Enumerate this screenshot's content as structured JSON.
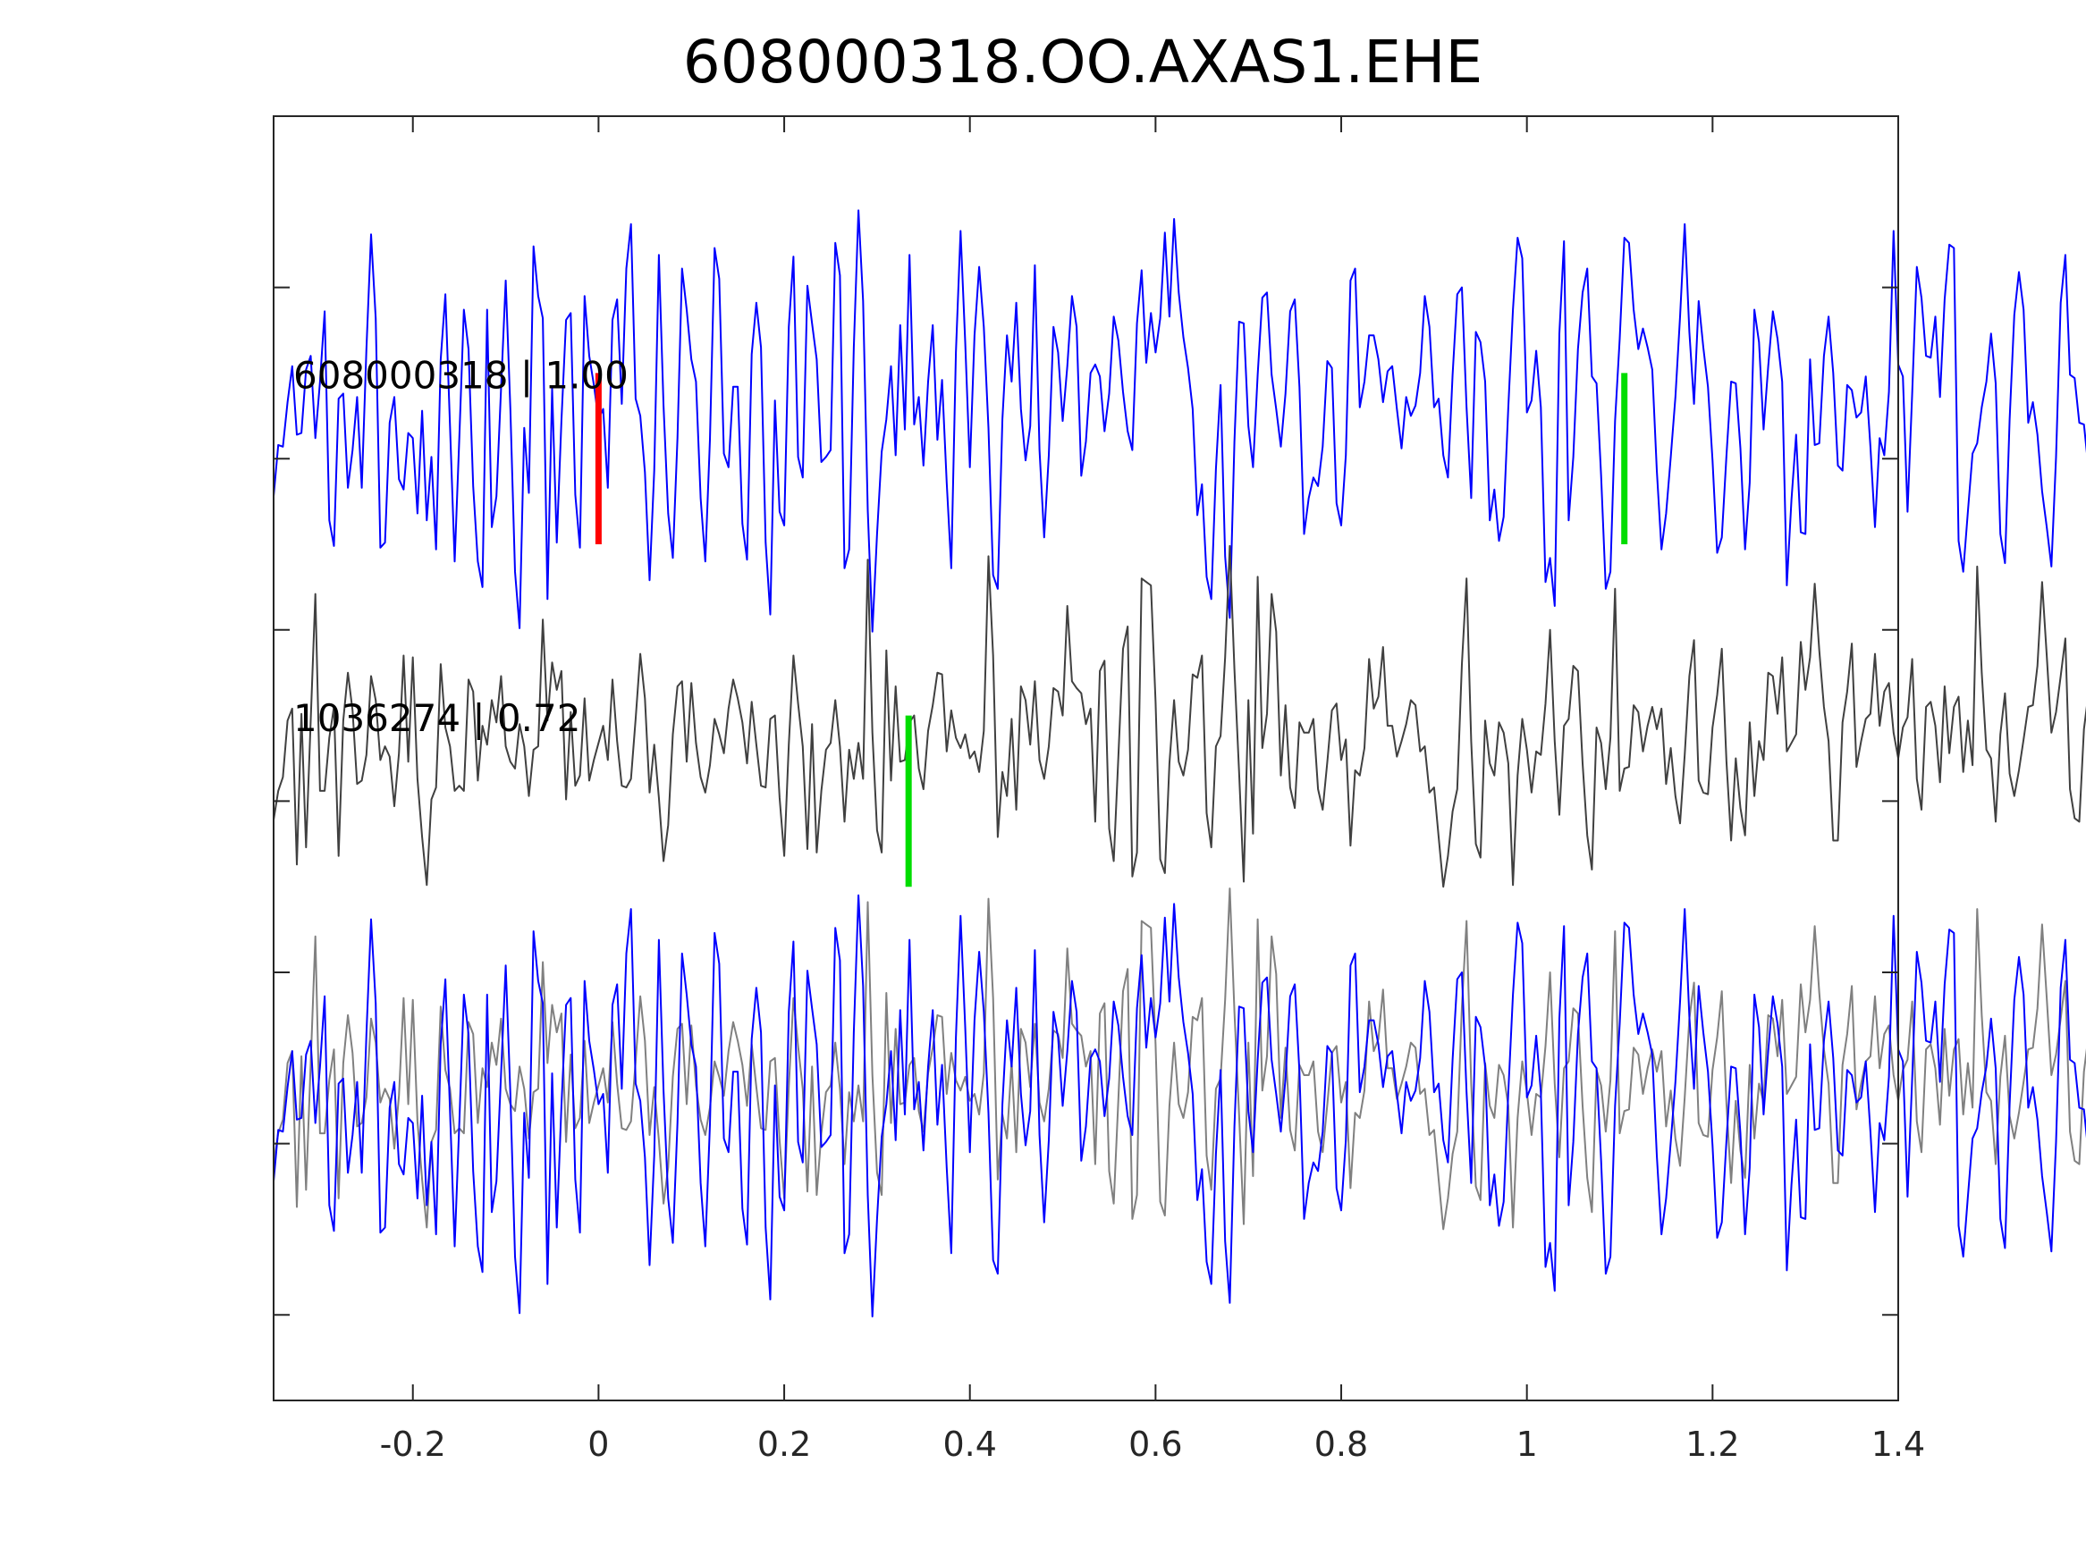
{
  "chart_data": {
    "type": "line",
    "title": "608000318.OO.AXAS1.EHE",
    "xlabel": "",
    "ylabel": "",
    "xlim": [
      -0.35,
      1.4
    ],
    "ylim": [
      -1.5,
      6.0
    ],
    "x_ticks": [
      -0.2,
      0,
      0.2,
      0.4,
      0.6,
      0.8,
      1,
      1.2,
      1.4
    ],
    "x_tick_labels": [
      "-0.2",
      "0",
      "0.2",
      "0.4",
      "0.6",
      "0.8",
      "1",
      "1.2",
      "1.4"
    ],
    "y_ticks": [
      -1,
      0,
      1,
      2,
      3,
      4,
      5
    ],
    "y_tick_labels_shown": false,
    "grid": false,
    "legend": "none",
    "sample_interval_s": 0.005,
    "start_x": -0.35,
    "series": [
      {
        "label": "608000318 | 1.00",
        "color": "#0000ff",
        "offset": 4,
        "values": [
          -0.22,
          0.08,
          0.07,
          0.33,
          0.54,
          0.14,
          0.15,
          0.52,
          0.6,
          0.12,
          0.45,
          0.86,
          -0.36,
          -0.51,
          0.35,
          0.38,
          -0.17,
          0.05,
          0.36,
          -0.17,
          0.64,
          1.31,
          0.82,
          -0.52,
          -0.49,
          0.21,
          0.36,
          -0.12,
          -0.18,
          0.15,
          0.12,
          -0.32,
          0.28,
          -0.36,
          0.01,
          -0.53,
          0.58,
          0.96,
          0.19,
          -0.6,
          0.12,
          0.87,
          0.64,
          -0.16,
          -0.6,
          -0.75,
          0.87,
          -0.4,
          -0.22,
          0.41,
          1.04,
          0.29,
          -0.66,
          -0.99,
          0.18,
          -0.2,
          1.24,
          0.95,
          0.82,
          -0.82,
          0.41,
          -0.49,
          0.22,
          0.81,
          0.85,
          -0.21,
          -0.52,
          0.95,
          0.6,
          0.43,
          0.23,
          0.29,
          -0.17,
          0.81,
          0.93,
          0.32,
          1.11,
          1.37,
          0.35,
          0.25,
          -0.08,
          -0.71,
          -0.07,
          1.19,
          0.31,
          -0.32,
          -0.58,
          0.12,
          1.11,
          0.87,
          0.58,
          0.45,
          -0.23,
          -0.6,
          0.11,
          1.23,
          1.05,
          0.03,
          -0.05,
          0.42,
          0.42,
          -0.38,
          -0.59,
          0.61,
          0.91,
          0.65,
          -0.49,
          -0.91,
          0.34,
          -0.31,
          -0.39,
          0.77,
          1.18,
          0.01,
          -0.11,
          1.01,
          0.79,
          0.58,
          -0.02,
          0.01,
          0.05,
          1.26,
          1.07,
          -0.64,
          -0.53,
          0.65,
          1.45,
          0.92,
          -0.3,
          -1.01,
          -0.44,
          0.04,
          0.23,
          0.54,
          0.02,
          0.78,
          0.17,
          1.19,
          0.2,
          0.36,
          -0.04,
          0.45,
          0.78,
          0.11,
          0.46,
          -0.14,
          -0.64,
          0.62,
          1.33,
          0.68,
          -0.05,
          0.72,
          1.12,
          0.77,
          0.18,
          -0.68,
          -0.76,
          0.23,
          0.72,
          0.45,
          0.91,
          0.29,
          -0.01,
          0.19,
          1.13,
          0.05,
          -0.46,
          0.02,
          0.77,
          0.62,
          0.22,
          0.54,
          0.95,
          0.77,
          -0.1,
          0.1,
          0.5,
          0.55,
          0.48,
          0.16,
          0.38,
          0.83,
          0.69,
          0.39,
          0.16,
          0.05,
          0.79,
          1.1,
          0.56,
          0.85,
          0.62,
          0.82,
          1.32,
          0.83,
          1.4,
          0.97,
          0.71,
          0.53,
          0.29,
          -0.33,
          -0.15,
          -0.69,
          -0.82,
          -0.06,
          0.43,
          -0.57,
          -0.93,
          0.1,
          0.8,
          0.79,
          0.19,
          -0.05,
          0.49,
          0.94,
          0.97,
          0.49,
          0.29,
          0.07,
          0.38,
          0.86,
          0.93,
          0.42,
          -0.44,
          -0.23,
          -0.11,
          -0.16,
          0.07,
          0.57,
          0.53,
          -0.26,
          -0.39,
          0.02,
          1.04,
          1.11,
          0.3,
          0.45,
          0.72,
          0.72,
          0.58,
          0.33,
          0.51,
          0.54,
          0.29,
          0.06,
          0.36,
          0.25,
          0.31,
          0.5,
          0.95,
          0.77,
          0.3,
          0.35,
          0.02,
          -0.11,
          0.49,
          0.96,
          1.0,
          0.3,
          -0.23,
          0.74,
          0.68,
          0.45,
          -0.36,
          -0.18,
          -0.48,
          -0.34,
          0.3,
          0.87,
          1.29,
          1.17,
          0.27,
          0.34,
          0.63,
          0.3,
          -0.72,
          -0.58,
          -0.86,
          0.73,
          1.27,
          -0.36,
          0.01,
          0.64,
          0.97,
          1.11,
          0.48,
          0.44,
          -0.1,
          -0.76,
          -0.66,
          0.22,
          0.7,
          1.29,
          1.26,
          0.87,
          0.64,
          0.76,
          0.65,
          0.52,
          -0.07,
          -0.53,
          -0.32,
          0.01,
          0.36,
          0.83,
          1.37,
          0.74,
          0.32,
          0.92,
          0.65,
          0.42,
          -0.01,
          -0.55,
          -0.46,
          0.02,
          0.45,
          0.44,
          0.06,
          -0.53,
          -0.14,
          0.87,
          0.68,
          0.17,
          0.54,
          0.86,
          0.7,
          0.45,
          -0.74,
          -0.24,
          0.14,
          -0.43,
          -0.44,
          0.58,
          0.08,
          0.09,
          0.6,
          0.83,
          0.5,
          -0.04,
          -0.07,
          0.43,
          0.4,
          0.24,
          0.27,
          0.48,
          0.07,
          -0.4,
          0.12,
          0.02,
          0.39,
          1.33,
          0.55,
          0.48,
          -0.31,
          0.38,
          1.12,
          0.94,
          0.6,
          0.59,
          0.83,
          0.36,
          0.93,
          1.25,
          1.23,
          -0.48,
          -0.66,
          -0.31,
          0.03,
          0.09,
          0.3,
          0.45,
          0.73,
          0.44,
          -0.44,
          -0.61,
          0.23,
          0.84,
          1.09,
          0.87,
          0.21,
          0.33,
          0.14,
          -0.19,
          -0.4,
          -0.63,
          0.01,
          0.91,
          1.19,
          0.49,
          0.47,
          0.21,
          0.2,
          -0.06,
          0.61,
          0.95,
          0.93,
          0.69,
          0.66,
          0.25,
          0.14,
          0.58,
          0.85,
          0.49,
          0.76,
          0.83,
          0.39,
          0.51,
          0.42,
          0.38,
          -0.21,
          -0.25,
          0.28,
          0.94,
          0.18,
          0.39,
          0.92,
          0.44,
          0.54,
          0.91,
          0.6,
          0.59,
          0.32,
          0.19,
          -0.35,
          0.73,
          0.86,
          -0.09,
          -0.12,
          -0.22,
          -0.22,
          0.54,
          0.77,
          0.66,
          -0.3,
          -0.61,
          -0.52,
          0.73,
          0.38,
          0.38,
          0.13,
          0.57,
          0.72,
          0.33,
          0.21,
          0.14,
          0.38,
          0.58,
          0.47,
          0.18,
          -0.08,
          0.0,
          0.15,
          0.14,
          0.16
        ]
      },
      {
        "label": "1036274 | 0.72",
        "color": "#404040",
        "offset": 2,
        "values": [
          -0.11,
          0.06,
          0.14,
          0.47,
          0.54,
          -0.37,
          0.51,
          -0.27,
          0.47,
          1.21,
          0.06,
          0.06,
          0.37,
          0.55,
          -0.32,
          0.47,
          0.75,
          0.53,
          0.1,
          0.12,
          0.27,
          0.73,
          0.59,
          0.24,
          0.32,
          0.26,
          -0.03,
          0.28,
          0.85,
          0.23,
          0.84,
          0.13,
          -0.21,
          -0.49,
          0.01,
          0.08,
          0.8,
          0.43,
          0.32,
          0.06,
          0.09,
          0.06,
          0.71,
          0.64,
          0.12,
          0.44,
          0.33,
          0.59,
          0.46,
          0.73,
          0.32,
          0.23,
          0.19,
          0.45,
          0.32,
          0.03,
          0.3,
          0.32,
          1.06,
          0.47,
          0.81,
          0.65,
          0.76,
          0.01,
          0.52,
          0.09,
          0.15,
          0.6,
          0.12,
          0.24,
          0.34,
          0.44,
          0.24,
          0.71,
          0.35,
          0.09,
          0.08,
          0.13,
          0.48,
          0.86,
          0.6,
          0.05,
          0.33,
          0.02,
          -0.35,
          -0.14,
          0.39,
          0.67,
          0.7,
          0.23,
          0.69,
          0.34,
          0.14,
          0.05,
          0.21,
          0.48,
          0.39,
          0.28,
          0.54,
          0.71,
          0.6,
          0.46,
          0.22,
          0.58,
          0.33,
          0.09,
          0.08,
          0.48,
          0.5,
          0.02,
          -0.32,
          0.33,
          0.85,
          0.57,
          0.32,
          -0.28,
          0.45,
          -0.3,
          0.06,
          0.3,
          0.34,
          0.59,
          0.32,
          -0.12,
          0.3,
          0.13,
          0.34,
          0.13,
          1.41,
          0.4,
          -0.17,
          -0.3,
          0.88,
          0.12,
          0.67,
          0.23,
          0.24,
          0.46,
          0.5,
          0.19,
          0.07,
          0.41,
          0.56,
          0.75,
          0.74,
          0.29,
          0.53,
          0.37,
          0.31,
          0.39,
          0.25,
          0.29,
          0.17,
          0.41,
          1.43,
          0.85,
          -0.21,
          0.17,
          0.03,
          0.48,
          -0.05,
          0.67,
          0.59,
          0.33,
          0.7,
          0.24,
          0.13,
          0.32,
          0.66,
          0.64,
          0.5,
          1.14,
          0.7,
          0.66,
          0.63,
          0.45,
          0.54,
          -0.12,
          0.76,
          0.82,
          -0.16,
          -0.35,
          0.26,
          0.89,
          1.02,
          -0.44,
          -0.3,
          1.3,
          1.28,
          1.26,
          0.58,
          -0.34,
          -0.42,
          0.22,
          0.59,
          0.23,
          0.15,
          0.3,
          0.74,
          0.72,
          0.85,
          -0.07,
          -0.27,
          0.32,
          0.38,
          0.84,
          1.49,
          0.77,
          0.17,
          -0.47,
          0.59,
          -0.19,
          1.31,
          0.31,
          0.51,
          1.21,
          0.99,
          0.15,
          0.56,
          0.08,
          -0.04,
          0.46,
          0.4,
          0.4,
          0.48,
          0.07,
          -0.05,
          0.23,
          0.53,
          0.57,
          0.24,
          0.36,
          -0.26,
          0.18,
          0.15,
          0.31,
          0.83,
          0.54,
          0.61,
          0.9,
          0.44,
          0.44,
          0.26,
          0.35,
          0.45,
          0.59,
          0.56,
          0.29,
          0.32,
          0.05,
          0.08,
          -0.21,
          -0.5,
          -0.32,
          -0.06,
          0.07,
          0.8,
          1.3,
          0.35,
          -0.25,
          -0.33,
          0.47,
          0.22,
          0.15,
          0.46,
          0.4,
          0.22,
          -0.49,
          0.15,
          0.48,
          0.3,
          0.05,
          0.29,
          0.27,
          0.57,
          1.0,
          0.35,
          -0.08,
          0.44,
          0.48,
          0.79,
          0.76,
          0.22,
          -0.2,
          -0.4,
          0.43,
          0.34,
          0.07,
          0.37,
          1.24,
          0.06,
          0.19,
          0.2,
          0.56,
          0.52,
          0.29,
          0.44,
          0.55,
          0.42,
          0.54,
          0.1,
          0.31,
          0.03,
          -0.13,
          0.27,
          0.73,
          0.94,
          0.12,
          0.05,
          0.04,
          0.43,
          0.62,
          0.89,
          0.23,
          -0.23,
          0.25,
          -0.04,
          -0.2,
          0.46,
          0.03,
          0.35,
          0.24,
          0.75,
          0.73,
          0.51,
          0.84,
          0.29,
          0.34,
          0.39,
          0.93,
          0.65,
          0.84,
          1.27,
          0.88,
          0.55,
          0.35,
          -0.23,
          -0.23,
          0.46,
          0.64,
          0.92,
          0.2,
          0.35,
          0.48,
          0.51,
          0.86,
          0.44,
          0.64,
          0.69,
          0.4,
          0.25,
          0.43,
          0.49,
          0.83,
          0.13,
          -0.05,
          0.55,
          0.58,
          0.44,
          0.11,
          0.67,
          0.28,
          0.55,
          0.61,
          0.17,
          0.47,
          0.21,
          1.37,
          0.75,
          0.3,
          0.25,
          -0.12,
          0.39,
          0.63,
          0.16,
          0.03,
          0.18,
          0.36,
          0.55,
          0.56,
          0.79,
          1.28,
          0.85,
          0.4,
          0.52,
          0.73,
          0.95,
          0.07,
          -0.1,
          -0.12,
          0.42,
          0.63,
          0.79,
          0.44,
          0.49,
          0.57,
          0.57,
          0.35,
          0.88,
          0.82,
          0.46,
          0.81,
          0.47,
          0.45,
          0.56,
          0.86,
          0.37,
          0.44,
          0.68,
          0.95,
          0.5,
          0.24,
          0.23,
          0.28,
          0.81,
          0.35,
          0.11,
          0.3,
          0.92,
          0.17,
          -0.11,
          0.59,
          0.13,
          0.18,
          0.6,
          0.48,
          0.3,
          0.46,
          0.28
        ]
      },
      {
        "label": "",
        "color": "#0000ff",
        "offset": 0,
        "values_ref": "series.0.values"
      },
      {
        "label": "",
        "color": "#808080",
        "offset": 0,
        "values_ref": "series.1.values"
      }
    ],
    "picks": [
      {
        "x": 0.0,
        "y_range": [
          3.5,
          4.5
        ],
        "color": "#ff0000"
      },
      {
        "x": 1.105,
        "y_range": [
          3.5,
          4.5
        ],
        "color": "#00dd00"
      },
      {
        "x": 0.334,
        "y_range": [
          1.5,
          2.5
        ],
        "color": "#00dd00"
      }
    ]
  }
}
